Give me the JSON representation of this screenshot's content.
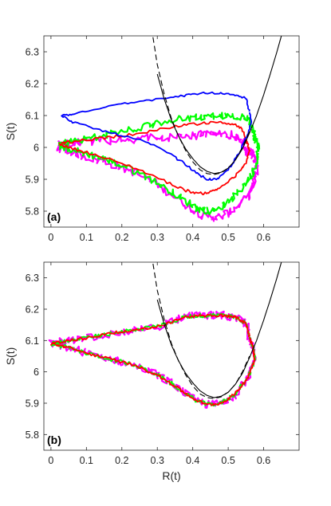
{
  "chart_data": [
    {
      "type": "line",
      "panel_label": "(a)",
      "xlabel": "",
      "ylabel": "S(t)",
      "xlim": [
        -0.02,
        0.7
      ],
      "ylim": [
        5.75,
        6.35
      ],
      "xticks": [
        0,
        0.1,
        0.2,
        0.3,
        0.4,
        0.5,
        0.6
      ],
      "xtick_labels": [
        "0",
        "0.1",
        "0.2",
        "0.3",
        "0.4",
        "0.5",
        "0.6"
      ],
      "yticks": [
        5.8,
        5.9,
        6.0,
        6.1,
        6.2,
        6.3
      ],
      "ytick_labels": [
        "5.8",
        "5.9",
        "6",
        "6.1",
        "6.2",
        "6.3"
      ],
      "grid": false,
      "series": [
        {
          "color": "#ff00ff",
          "style": "noisy-loop",
          "noise": 0.012,
          "x": [
            0.55,
            0.54,
            0.51,
            0.47,
            0.43,
            0.38,
            0.3,
            0.22,
            0.14,
            0.07,
            0.03,
            0.02,
            0.05,
            0.1,
            0.17,
            0.24,
            0.32,
            0.38,
            0.43,
            0.47,
            0.51,
            0.55,
            0.57,
            0.58,
            0.575,
            0.56,
            0.55
          ],
          "y": [
            5.98,
            6.02,
            6.04,
            6.04,
            6.04,
            6.035,
            6.03,
            6.025,
            6.02,
            6.015,
            6.01,
            6.0,
            5.99,
            5.97,
            5.95,
            5.92,
            5.87,
            5.82,
            5.785,
            5.78,
            5.8,
            5.84,
            5.88,
            5.93,
            5.97,
            5.99,
            5.98
          ]
        },
        {
          "color": "#00ff00",
          "style": "noisy-loop",
          "noise": 0.01,
          "x": [
            0.57,
            0.56,
            0.52,
            0.47,
            0.42,
            0.36,
            0.28,
            0.2,
            0.12,
            0.06,
            0.03,
            0.025,
            0.05,
            0.1,
            0.16,
            0.23,
            0.3,
            0.36,
            0.41,
            0.45,
            0.49,
            0.53,
            0.565,
            0.58,
            0.585,
            0.575,
            0.57
          ],
          "y": [
            6.05,
            6.09,
            6.1,
            6.1,
            6.095,
            6.09,
            6.07,
            6.05,
            6.03,
            6.02,
            6.01,
            6.005,
            5.995,
            5.98,
            5.96,
            5.93,
            5.89,
            5.845,
            5.81,
            5.8,
            5.82,
            5.86,
            5.91,
            5.96,
            6.0,
            6.03,
            6.05
          ]
        },
        {
          "color": "#ff0000",
          "style": "loop",
          "noise": 0.004,
          "x": [
            0.55,
            0.54,
            0.51,
            0.47,
            0.42,
            0.37,
            0.3,
            0.22,
            0.15,
            0.08,
            0.04,
            0.025,
            0.05,
            0.1,
            0.17,
            0.25,
            0.32,
            0.38,
            0.42,
            0.45,
            0.48,
            0.52,
            0.55,
            0.56,
            0.555,
            0.55
          ],
          "y": [
            6.02,
            6.06,
            6.075,
            6.08,
            6.075,
            6.07,
            6.055,
            6.04,
            6.03,
            6.02,
            6.015,
            6.01,
            6.0,
            5.985,
            5.96,
            5.93,
            5.895,
            5.865,
            5.855,
            5.86,
            5.875,
            5.91,
            5.95,
            5.99,
            6.01,
            6.02
          ]
        },
        {
          "color": "#0000ff",
          "style": "loop",
          "noise": 0.003,
          "x": [
            0.56,
            0.55,
            0.52,
            0.48,
            0.43,
            0.39,
            0.33,
            0.26,
            0.19,
            0.12,
            0.06,
            0.03,
            0.06,
            0.12,
            0.19,
            0.26,
            0.32,
            0.37,
            0.41,
            0.44,
            0.47,
            0.5,
            0.53,
            0.555,
            0.565,
            0.56
          ],
          "y": [
            6.11,
            6.155,
            6.165,
            6.17,
            6.17,
            6.165,
            6.155,
            6.145,
            6.135,
            6.12,
            6.105,
            6.1,
            6.08,
            6.06,
            6.04,
            6.02,
            5.99,
            5.955,
            5.92,
            5.9,
            5.9,
            5.93,
            5.98,
            6.04,
            6.08,
            6.11
          ]
        },
        {
          "color": "#000000",
          "style": "dashed",
          "x": [
            0.28,
            0.3,
            0.32,
            0.34,
            0.36,
            0.38,
            0.4,
            0.42,
            0.44,
            0.46,
            0.48,
            0.5,
            0.52,
            0.54,
            0.56
          ],
          "y": [
            6.4,
            6.26,
            6.165,
            6.09,
            6.035,
            5.99,
            5.955,
            5.93,
            5.918,
            5.915,
            5.92,
            5.935,
            5.96,
            6.0,
            6.05
          ]
        },
        {
          "color": "#000000",
          "style": "solid",
          "x": [
            0.3,
            0.32,
            0.34,
            0.36,
            0.38,
            0.4,
            0.42,
            0.44,
            0.46,
            0.48,
            0.5,
            0.52,
            0.54,
            0.56,
            0.58,
            0.6,
            0.62,
            0.64,
            0.66
          ],
          "y": [
            6.23,
            6.15,
            6.085,
            6.035,
            5.995,
            5.965,
            5.94,
            5.925,
            5.918,
            5.922,
            5.935,
            5.96,
            5.995,
            6.045,
            6.1,
            6.165,
            6.235,
            6.31,
            6.39
          ]
        }
      ]
    },
    {
      "type": "line",
      "panel_label": "(b)",
      "xlabel": "R(t)",
      "ylabel": "S(t)",
      "xlim": [
        -0.02,
        0.7
      ],
      "ylim": [
        5.75,
        6.35
      ],
      "xticks": [
        0,
        0.1,
        0.2,
        0.3,
        0.4,
        0.5,
        0.6
      ],
      "xtick_labels": [
        "0",
        "0.1",
        "0.2",
        "0.3",
        "0.4",
        "0.5",
        "0.6"
      ],
      "yticks": [
        5.8,
        5.9,
        6.0,
        6.1,
        6.2,
        6.3
      ],
      "ytick_labels": [
        "5.8",
        "5.9",
        "6",
        "6.1",
        "6.2",
        "6.3"
      ],
      "grid": false,
      "series": [
        {
          "color": "#ff00ff",
          "style": "noisy-loop",
          "noise": 0.012,
          "x": [
            0.56,
            0.55,
            0.52,
            0.48,
            0.43,
            0.38,
            0.32,
            0.25,
            0.18,
            0.11,
            0.05,
            0.0,
            0.04,
            0.1,
            0.17,
            0.24,
            0.3,
            0.35,
            0.4,
            0.44,
            0.48,
            0.52,
            0.555,
            0.575,
            0.57,
            0.56
          ],
          "y": [
            6.11,
            6.155,
            6.175,
            6.18,
            6.18,
            6.175,
            6.15,
            6.135,
            6.125,
            6.11,
            6.1,
            6.09,
            6.08,
            6.06,
            6.04,
            6.02,
            5.99,
            5.955,
            5.915,
            5.895,
            5.9,
            5.93,
            5.98,
            6.04,
            6.08,
            6.11
          ]
        },
        {
          "color": "#00ff00",
          "style": "noisy-loop",
          "noise": 0.006,
          "x": [
            0.56,
            0.55,
            0.52,
            0.48,
            0.43,
            0.38,
            0.32,
            0.25,
            0.18,
            0.11,
            0.05,
            0.0,
            0.04,
            0.1,
            0.17,
            0.24,
            0.3,
            0.35,
            0.4,
            0.44,
            0.48,
            0.52,
            0.555,
            0.575,
            0.57,
            0.56
          ],
          "y": [
            6.11,
            6.155,
            6.175,
            6.18,
            6.18,
            6.175,
            6.15,
            6.135,
            6.125,
            6.11,
            6.1,
            6.09,
            6.08,
            6.06,
            6.04,
            6.02,
            5.99,
            5.955,
            5.915,
            5.895,
            5.9,
            5.93,
            5.98,
            6.04,
            6.08,
            6.11
          ]
        },
        {
          "color": "#ff0000",
          "style": "noisy-loop",
          "noise": 0.004,
          "x": [
            0.56,
            0.55,
            0.52,
            0.48,
            0.43,
            0.38,
            0.32,
            0.25,
            0.18,
            0.11,
            0.05,
            0.0,
            0.04,
            0.1,
            0.17,
            0.24,
            0.3,
            0.35,
            0.4,
            0.44,
            0.48,
            0.52,
            0.555,
            0.575,
            0.57,
            0.56
          ],
          "y": [
            6.11,
            6.155,
            6.175,
            6.18,
            6.18,
            6.175,
            6.15,
            6.135,
            6.125,
            6.11,
            6.1,
            6.09,
            6.08,
            6.06,
            6.04,
            6.02,
            5.99,
            5.955,
            5.915,
            5.895,
            5.9,
            5.93,
            5.98,
            6.04,
            6.08,
            6.11
          ]
        },
        {
          "color": "#000000",
          "style": "dashed",
          "x": [
            0.28,
            0.3,
            0.32,
            0.34,
            0.36,
            0.38,
            0.4,
            0.42,
            0.44,
            0.46,
            0.48,
            0.5,
            0.52,
            0.54,
            0.56
          ],
          "y": [
            6.4,
            6.26,
            6.165,
            6.09,
            6.035,
            5.99,
            5.955,
            5.93,
            5.918,
            5.915,
            5.92,
            5.935,
            5.96,
            6.0,
            6.05
          ]
        },
        {
          "color": "#000000",
          "style": "solid",
          "x": [
            0.3,
            0.32,
            0.34,
            0.36,
            0.38,
            0.4,
            0.42,
            0.44,
            0.46,
            0.48,
            0.5,
            0.52,
            0.54,
            0.56,
            0.58,
            0.6,
            0.62,
            0.64,
            0.66
          ],
          "y": [
            6.23,
            6.15,
            6.085,
            6.035,
            5.995,
            5.965,
            5.94,
            5.925,
            5.918,
            5.922,
            5.935,
            5.96,
            5.995,
            6.045,
            6.1,
            6.165,
            6.235,
            6.31,
            6.39
          ]
        }
      ]
    }
  ]
}
